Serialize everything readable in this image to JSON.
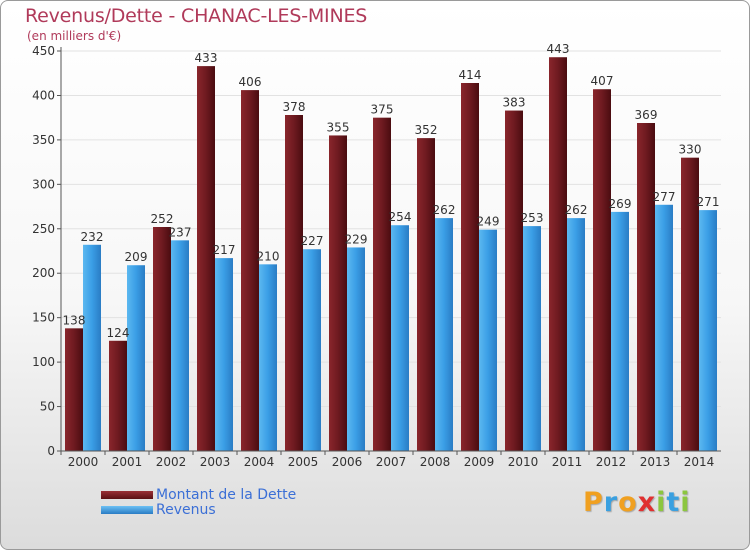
{
  "header": {
    "title": "Revenus/Dette - CHANAC-LES-MINES",
    "subtitle": "(en milliers d'€)"
  },
  "colors": {
    "debt": "#7a1c22",
    "revenue": "#3a9ee6",
    "axis_text": "#333333",
    "grid": "#e2e2e2"
  },
  "chart_data": {
    "type": "bar",
    "categories": [
      "2000",
      "2001",
      "2002",
      "2003",
      "2004",
      "2005",
      "2006",
      "2007",
      "2008",
      "2009",
      "2010",
      "2011",
      "2012",
      "2013",
      "2014"
    ],
    "series": [
      {
        "name": "Montant de la Dette",
        "values": [
          138,
          124,
          252,
          433,
          406,
          378,
          355,
          375,
          352,
          414,
          383,
          443,
          407,
          369,
          330
        ]
      },
      {
        "name": "Revenus",
        "values": [
          232,
          209,
          237,
          217,
          210,
          227,
          229,
          254,
          262,
          249,
          253,
          262,
          269,
          277,
          271
        ]
      }
    ],
    "title": "Revenus/Dette - CHANAC-LES-MINES",
    "ylabel": "(en milliers d'€)",
    "ylim": [
      0,
      450
    ],
    "yticks": [
      0,
      50,
      100,
      150,
      200,
      250,
      300,
      350,
      400,
      450
    ],
    "grid": true,
    "legend_position": "bottom-left"
  },
  "legend": {
    "items": [
      {
        "label": "Montant de la Dette"
      },
      {
        "label": "Revenus"
      }
    ]
  },
  "brand": {
    "letters": [
      "P",
      "r",
      "o",
      "x",
      "i",
      "t",
      "i"
    ],
    "letter_colors": [
      "#f0a020",
      "#3aa0e0",
      "#f0a020",
      "#e03030",
      "#8cc63f",
      "#3aa0e0",
      "#8cc63f"
    ]
  }
}
